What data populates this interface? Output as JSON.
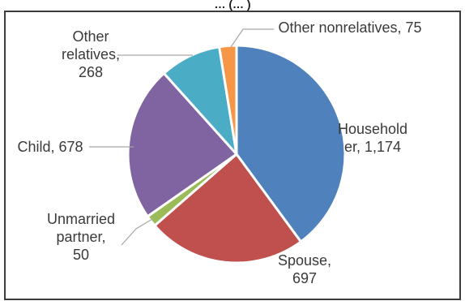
{
  "chart_data": {
    "type": "pie",
    "title_fragment": "… (… )",
    "slices": [
      {
        "name": "Householder",
        "value": 1174,
        "color": "#4f81bd",
        "label_lines": [
          "Household",
          "er, 1,174"
        ]
      },
      {
        "name": "Spouse",
        "value": 697,
        "color": "#c0504d",
        "label_lines": [
          "Spouse,",
          "697"
        ]
      },
      {
        "name": "Unmarried partner",
        "value": 50,
        "color": "#9bbb59",
        "label_lines": [
          "Unmarried",
          "partner,",
          "50"
        ]
      },
      {
        "name": "Child",
        "value": 678,
        "color": "#8064a2",
        "label_lines": [
          "Child, 678"
        ]
      },
      {
        "name": "Other relatives",
        "value": 268,
        "color": "#4bacc6",
        "label_lines": [
          "Other",
          "relatives,",
          "268"
        ]
      },
      {
        "name": "Other nonrelatives",
        "value": 75,
        "color": "#f79646",
        "label_lines": [
          "Other nonrelatives, 75"
        ]
      }
    ],
    "legend": "none",
    "grid": false
  }
}
